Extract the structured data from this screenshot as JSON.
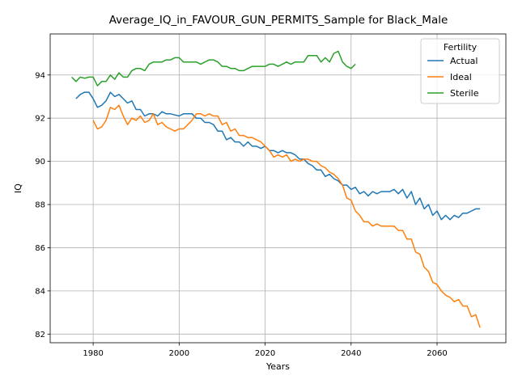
{
  "chart_data": {
    "type": "line",
    "title": "Average_IQ_in_FAVOUR_GUN_PERMITS_Sample for Black_Male",
    "xlabel": "Years",
    "ylabel": "IQ",
    "xlim": [
      1970,
      2076
    ],
    "ylim": [
      81.6,
      95.9
    ],
    "xticks": [
      1980,
      2000,
      2020,
      2040,
      2060
    ],
    "yticks": [
      82,
      84,
      86,
      88,
      90,
      92,
      94
    ],
    "grid": true,
    "legend": {
      "title": "Fertility",
      "position": "top-right"
    },
    "series": [
      {
        "name": "Actual",
        "color": "#1f77b4",
        "x": [
          1976,
          1977,
          1978,
          1979,
          1980,
          1981,
          1982,
          1983,
          1984,
          1985,
          1986,
          1987,
          1988,
          1989,
          1990,
          1991,
          1992,
          1993,
          1994,
          1995,
          1996,
          1997,
          1998,
          1999,
          2000,
          2001,
          2002,
          2003,
          2004,
          2005,
          2006,
          2007,
          2008,
          2009,
          2010,
          2011,
          2012,
          2013,
          2014,
          2015,
          2016,
          2017,
          2018,
          2019,
          2020,
          2021,
          2022,
          2023,
          2024,
          2025,
          2026,
          2027,
          2028,
          2029,
          2030,
          2031,
          2032,
          2033,
          2034,
          2035,
          2036,
          2037,
          2038,
          2039,
          2040,
          2041,
          2042,
          2043,
          2044,
          2045,
          2046,
          2047,
          2048,
          2049,
          2050,
          2051,
          2052,
          2053,
          2054,
          2055,
          2056,
          2057,
          2058,
          2059,
          2060,
          2061,
          2062,
          2063,
          2064,
          2065,
          2066,
          2067,
          2068,
          2069,
          2070
        ],
        "y": [
          92.9,
          93.1,
          93.2,
          93.2,
          92.9,
          92.5,
          92.6,
          92.8,
          93.2,
          93.0,
          93.1,
          92.9,
          92.7,
          92.8,
          92.4,
          92.4,
          92.1,
          92.2,
          92.2,
          92.1,
          92.3,
          92.2,
          92.2,
          92.15,
          92.1,
          92.2,
          92.2,
          92.2,
          92.0,
          92.0,
          91.8,
          91.8,
          91.7,
          91.4,
          91.4,
          91.0,
          91.1,
          90.9,
          90.9,
          90.7,
          90.9,
          90.7,
          90.7,
          90.6,
          90.7,
          90.5,
          90.5,
          90.4,
          90.5,
          90.4,
          90.4,
          90.3,
          90.1,
          90.1,
          89.9,
          89.8,
          89.6,
          89.6,
          89.3,
          89.4,
          89.2,
          89.1,
          88.9,
          88.9,
          88.7,
          88.8,
          88.5,
          88.6,
          88.4,
          88.6,
          88.5,
          88.6,
          88.6,
          88.6,
          88.7,
          88.5,
          88.7,
          88.3,
          88.6,
          88.0,
          88.3,
          87.8,
          88.0,
          87.5,
          87.7,
          87.3,
          87.5,
          87.3,
          87.5,
          87.4,
          87.6,
          87.6,
          87.7,
          87.8,
          87.8
        ]
      },
      {
        "name": "Ideal",
        "color": "#ff7f0e",
        "x": [
          1980,
          1981,
          1982,
          1983,
          1984,
          1985,
          1986,
          1987,
          1988,
          1989,
          1990,
          1991,
          1992,
          1993,
          1994,
          1995,
          1996,
          1997,
          1998,
          1999,
          2000,
          2001,
          2002,
          2003,
          2004,
          2005,
          2006,
          2007,
          2008,
          2009,
          2010,
          2011,
          2012,
          2013,
          2014,
          2015,
          2016,
          2017,
          2018,
          2019,
          2020,
          2021,
          2022,
          2023,
          2024,
          2025,
          2026,
          2027,
          2028,
          2029,
          2030,
          2031,
          2032,
          2033,
          2034,
          2035,
          2036,
          2037,
          2038,
          2039,
          2040,
          2041,
          2042,
          2043,
          2044,
          2045,
          2046,
          2047,
          2048,
          2049,
          2050,
          2051,
          2052,
          2053,
          2054,
          2055,
          2056,
          2057,
          2058,
          2059,
          2060,
          2061,
          2062,
          2063,
          2064,
          2065,
          2066,
          2067,
          2068,
          2069,
          2070
        ],
        "y": [
          91.9,
          91.5,
          91.6,
          91.9,
          92.5,
          92.4,
          92.6,
          92.1,
          91.7,
          92.0,
          91.9,
          92.1,
          91.8,
          91.9,
          92.2,
          91.7,
          91.8,
          91.6,
          91.5,
          91.4,
          91.5,
          91.5,
          91.7,
          91.9,
          92.2,
          92.2,
          92.1,
          92.2,
          92.1,
          92.1,
          91.7,
          91.8,
          91.4,
          91.5,
          91.2,
          91.2,
          91.1,
          91.1,
          91.0,
          90.9,
          90.7,
          90.5,
          90.2,
          90.3,
          90.2,
          90.3,
          90.0,
          90.1,
          90.0,
          90.1,
          90.1,
          90.0,
          90.0,
          89.8,
          89.7,
          89.5,
          89.4,
          89.2,
          88.9,
          88.3,
          88.2,
          87.7,
          87.5,
          87.2,
          87.2,
          87.0,
          87.1,
          87.0,
          87.0,
          87.0,
          87.0,
          86.8,
          86.8,
          86.4,
          86.4,
          85.8,
          85.7,
          85.1,
          84.9,
          84.4,
          84.3,
          84.0,
          83.8,
          83.7,
          83.5,
          83.6,
          83.3,
          83.3,
          82.8,
          82.9,
          82.3
        ]
      },
      {
        "name": "Sterile",
        "color": "#2ca02c",
        "x": [
          1975,
          1976,
          1977,
          1978,
          1979,
          1980,
          1981,
          1982,
          1983,
          1984,
          1985,
          1986,
          1987,
          1988,
          1989,
          1990,
          1991,
          1992,
          1993,
          1994,
          1995,
          1996,
          1997,
          1998,
          1999,
          2000,
          2001,
          2002,
          2003,
          2004,
          2005,
          2006,
          2007,
          2008,
          2009,
          2010,
          2011,
          2012,
          2013,
          2014,
          2015,
          2016,
          2017,
          2018,
          2019,
          2020,
          2021,
          2022,
          2023,
          2024,
          2025,
          2026,
          2027,
          2028,
          2029,
          2030,
          2031,
          2032,
          2033,
          2034,
          2035,
          2036,
          2037,
          2038,
          2039,
          2040,
          2041
        ],
        "y": [
          93.9,
          93.7,
          93.9,
          93.85,
          93.9,
          93.9,
          93.5,
          93.7,
          93.7,
          94.0,
          93.8,
          94.1,
          93.9,
          93.9,
          94.2,
          94.3,
          94.3,
          94.2,
          94.5,
          94.6,
          94.6,
          94.6,
          94.7,
          94.7,
          94.8,
          94.8,
          94.6,
          94.6,
          94.6,
          94.6,
          94.5,
          94.6,
          94.7,
          94.7,
          94.6,
          94.4,
          94.4,
          94.3,
          94.3,
          94.2,
          94.2,
          94.3,
          94.4,
          94.4,
          94.4,
          94.4,
          94.5,
          94.5,
          94.4,
          94.5,
          94.6,
          94.5,
          94.6,
          94.6,
          94.6,
          94.9,
          94.9,
          94.9,
          94.6,
          94.8,
          94.6,
          95.0,
          95.1,
          94.6,
          94.4,
          94.3,
          94.5
        ]
      }
    ]
  }
}
